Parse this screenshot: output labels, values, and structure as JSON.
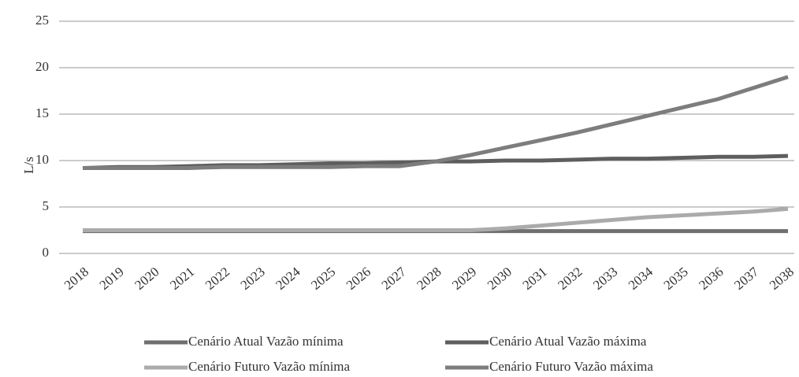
{
  "chart_data": {
    "type": "line",
    "y_label": "L/s",
    "categories": [
      "2018",
      "2019",
      "2020",
      "2021",
      "2022",
      "2023",
      "2024",
      "2025",
      "2026",
      "2027",
      "2028",
      "2029",
      "2030",
      "2031",
      "2032",
      "2033",
      "2034",
      "2035",
      "2036",
      "2037",
      "2038"
    ],
    "series": [
      {
        "name": "Cenário Atual Vazão mínima",
        "color": "#6f6f6f",
        "values": [
          2.4,
          2.4,
          2.4,
          2.4,
          2.4,
          2.4,
          2.4,
          2.4,
          2.4,
          2.4,
          2.4,
          2.4,
          2.4,
          2.4,
          2.4,
          2.4,
          2.4,
          2.4,
          2.4,
          2.4,
          2.4
        ]
      },
      {
        "name": "Cenário Atual Vazão máxima",
        "color": "#5e5e5e",
        "values": [
          9.2,
          9.3,
          9.3,
          9.4,
          9.5,
          9.5,
          9.6,
          9.7,
          9.7,
          9.8,
          9.9,
          9.9,
          10.0,
          10.0,
          10.1,
          10.2,
          10.2,
          10.3,
          10.4,
          10.4,
          10.5
        ]
      },
      {
        "name": "Cenário Futuro Vazão mínima",
        "color": "#ababab",
        "values": [
          2.5,
          2.5,
          2.5,
          2.5,
          2.5,
          2.5,
          2.5,
          2.5,
          2.5,
          2.5,
          2.5,
          2.5,
          2.7,
          3.0,
          3.3,
          3.6,
          3.9,
          4.1,
          4.3,
          4.5,
          4.8
        ]
      },
      {
        "name": "Cenário Futuro Vazão máxima",
        "color": "#7d7d7d",
        "values": [
          9.2,
          9.2,
          9.2,
          9.2,
          9.3,
          9.3,
          9.3,
          9.3,
          9.4,
          9.4,
          9.9,
          10.6,
          11.4,
          12.2,
          13.0,
          13.9,
          14.8,
          15.7,
          16.6,
          17.8,
          19.0
        ]
      }
    ],
    "ylim": [
      0,
      25
    ],
    "yticks": [
      0,
      5,
      10,
      15,
      20,
      25
    ],
    "grid": true
  }
}
